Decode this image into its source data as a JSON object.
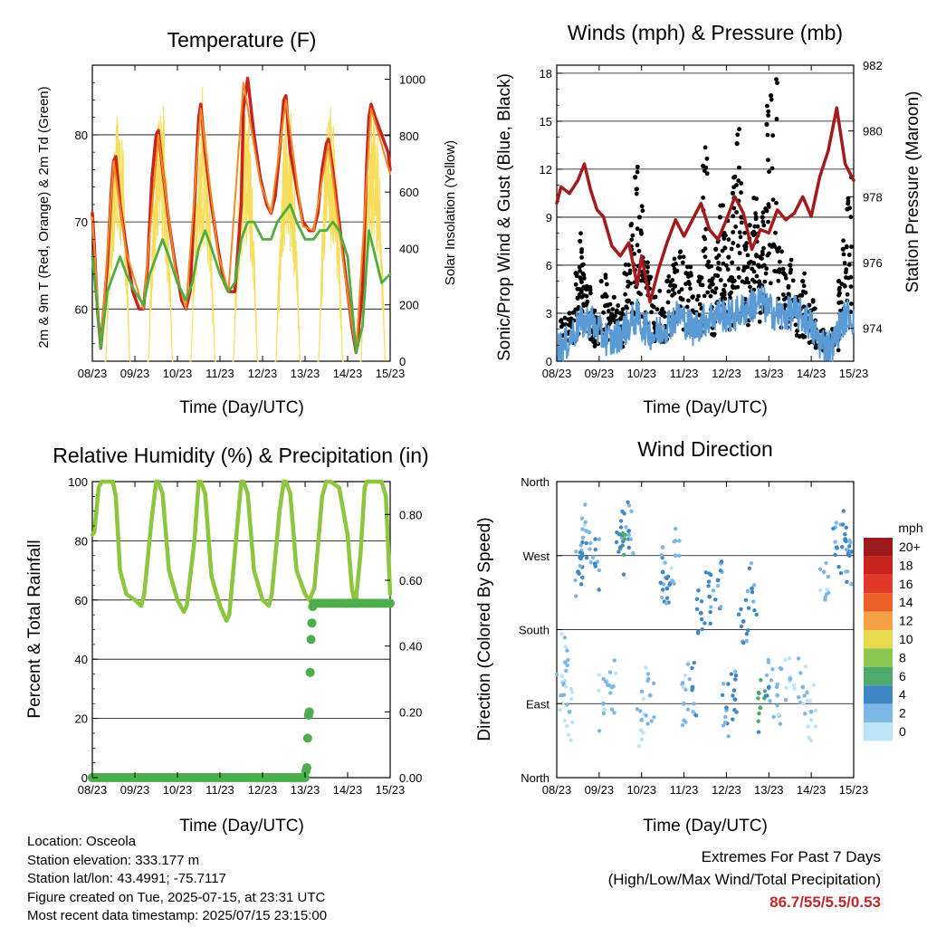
{
  "panels": {
    "temperature": {
      "title": "Temperature (F)",
      "xlabel": "Time (Day/UTC)",
      "ylabel_left": "2m & 9m T (Red, Orange) & 2m Td (Green)",
      "ylabel_right": "Solar Insolation (Yellow)"
    },
    "winds": {
      "title": "Winds (mph) & Pressure (mb)",
      "xlabel": "Time (Day/UTC)",
      "ylabel_left": "Sonic/Prop Wind & Gust (Blue, Black)",
      "ylabel_right": "Station Pressure (Maroon)"
    },
    "humidity": {
      "title": "Relative Humidity (%) & Precipitation (in)",
      "xlabel": "Time (Day/UTC)",
      "ylabel_left": "Percent & Total Rainfall"
    },
    "direction": {
      "title": "Wind Direction",
      "xlabel": "Time (Day/UTC)",
      "ylabel_left": "Direction (Colored By Speed)",
      "legend_title": "mph"
    }
  },
  "info": {
    "location": "Location: Osceola",
    "elevation": "Station elevation: 333.177 m",
    "latlon": "Station lat/lon: 43.4991; -75.7117",
    "created": "Figure created on Tue, 2025-07-15, at 23:31 UTC",
    "timestamp": "Most recent data timestamp: 2025/07/15 23:15:00"
  },
  "extremes": {
    "line1": "Extremes For Past 7 Days",
    "line2": "(High/Low/Max Wind/Total Precipitation)",
    "values": "86.7/55/5.5/0.53"
  },
  "chart_data": [
    {
      "type": "line",
      "title": "Temperature (F)",
      "xlabel": "Time (Day/UTC)",
      "ylabel": "2m & 9m T (Red, Orange) & 2m Td (Green)",
      "y2label": "Solar Insolation (Yellow)",
      "x_ticks": [
        "08/23",
        "09/23",
        "10/23",
        "11/23",
        "12/23",
        "13/23",
        "14/23",
        "15/23"
      ],
      "xlim": [
        0,
        7
      ],
      "ylim": [
        54,
        88
      ],
      "yticks": [
        60,
        70,
        80
      ],
      "y2lim": [
        0,
        1050
      ],
      "y2ticks": [
        0,
        200,
        400,
        600,
        800,
        1000
      ],
      "series": [
        {
          "color": "#c8241d",
          "x": [
            0,
            0.05,
            0.12,
            0.2,
            0.35,
            0.45,
            0.5,
            0.55,
            0.65,
            0.8,
            0.95,
            1.1,
            1.2,
            1.3,
            1.4,
            1.5,
            1.55,
            1.65,
            1.8,
            1.95,
            2.1,
            2.2,
            2.3,
            2.4,
            2.5,
            2.55,
            2.65,
            2.8,
            2.95,
            3.1,
            3.2,
            3.35,
            3.5,
            3.55,
            3.65,
            3.8,
            3.95,
            4.1,
            4.2,
            4.3,
            4.4,
            4.5,
            4.55,
            4.65,
            4.8,
            4.95,
            5.1,
            5.2,
            5.3,
            5.4,
            5.5,
            5.55,
            5.65,
            5.8,
            5.95,
            6.1,
            6.2,
            6.35,
            6.45,
            6.5,
            6.55,
            6.65,
            6.8,
            6.95,
            7
          ],
          "y": [
            71,
            67,
            60,
            55.5,
            65,
            74,
            77,
            77.5,
            72,
            67,
            62,
            60,
            60,
            65,
            75,
            80,
            80.5,
            76,
            70,
            65,
            61,
            60,
            62,
            72,
            82,
            83.5,
            78,
            72,
            67,
            63,
            62,
            62,
            72,
            83,
            86.5,
            80,
            75,
            72,
            71,
            73,
            78,
            84,
            84.5,
            78,
            74,
            70,
            69,
            69,
            71,
            76,
            79,
            79.5,
            76,
            70,
            64,
            58,
            55,
            62,
            77,
            82,
            83.5,
            82,
            80,
            78,
            76
          ]
        },
        {
          "color": "#f08a24",
          "x": [
            0,
            0.2,
            0.5,
            0.8,
            1.2,
            1.55,
            1.95,
            2.2,
            2.55,
            2.95,
            3.2,
            3.55,
            3.95,
            4.2,
            4.55,
            4.95,
            5.2,
            5.55,
            5.95,
            6.2,
            6.55,
            7
          ],
          "y": [
            70.5,
            55.5,
            77,
            66.5,
            60,
            80,
            64.5,
            60,
            83,
            66.5,
            62,
            86,
            74.5,
            71,
            84,
            69.5,
            69,
            79,
            63.5,
            55,
            83,
            75.5
          ]
        },
        {
          "color": "#4fae3b",
          "x": [
            0,
            0.12,
            0.2,
            0.35,
            0.5,
            0.65,
            0.8,
            1.0,
            1.2,
            1.35,
            1.5,
            1.65,
            1.8,
            2.0,
            2.2,
            2.35,
            2.5,
            2.65,
            2.8,
            3.0,
            3.2,
            3.35,
            3.5,
            3.65,
            3.8,
            4.0,
            4.2,
            4.35,
            4.5,
            4.65,
            4.8,
            5.0,
            5.2,
            5.35,
            5.5,
            5.65,
            5.8,
            6.0,
            6.2,
            6.35,
            6.5,
            6.65,
            6.8,
            7
          ],
          "y": [
            66,
            60,
            55.5,
            62,
            64,
            66,
            64,
            62,
            60.5,
            64,
            66,
            68,
            66,
            63,
            61,
            63,
            67,
            69,
            67,
            64,
            62,
            63,
            68,
            70,
            70,
            68,
            68,
            70,
            71,
            72,
            70,
            68,
            68,
            69,
            69,
            70,
            69,
            66,
            55,
            58,
            69,
            66,
            63,
            64
          ]
        }
      ]
    },
    {
      "type": "scatter",
      "title": "Winds (mph) & Pressure (mb)",
      "xlabel": "Time (Day/UTC)",
      "ylabel": "Sonic/Prop Wind & Gust (Blue, Black)",
      "y2label": "Station Pressure (Maroon)",
      "x_ticks": [
        "08/23",
        "09/23",
        "10/23",
        "11/23",
        "12/23",
        "13/23",
        "14/23",
        "15/23"
      ],
      "xlim": [
        0,
        7
      ],
      "ylim": [
        0,
        18.5
      ],
      "yticks": [
        0,
        3,
        6,
        9,
        12,
        15,
        18
      ],
      "y2lim": [
        973,
        982
      ],
      "y2ticks": [
        974,
        976,
        978,
        980,
        982
      ],
      "series": [
        {
          "name": "Station Pressure",
          "color": "#a31a1a",
          "type": "line",
          "x": [
            0,
            0.1,
            0.3,
            0.5,
            0.65,
            0.8,
            0.95,
            1.1,
            1.3,
            1.5,
            1.7,
            1.9,
            2.0,
            2.2,
            2.4,
            2.6,
            2.8,
            3.0,
            3.2,
            3.4,
            3.6,
            3.8,
            4.0,
            4.2,
            4.4,
            4.6,
            4.8,
            5.0,
            5.2,
            5.4,
            5.6,
            5.8,
            6.0,
            6.2,
            6.4,
            6.6,
            6.8,
            7
          ],
          "y": [
            977.8,
            978.3,
            978.1,
            978.5,
            979.0,
            978.2,
            977.6,
            977.4,
            976.5,
            976.2,
            976.6,
            975.3,
            976.2,
            974.8,
            975.8,
            976.6,
            977.3,
            976.8,
            977.3,
            977.8,
            977.0,
            976.7,
            977.3,
            978.0,
            977.5,
            976.4,
            977.0,
            976.9,
            977.6,
            977.3,
            977.5,
            978.0,
            977.4,
            978.6,
            979.4,
            980.7,
            979.0,
            978.5
          ]
        },
        {
          "name": "Wind",
          "color": "#5b9bd5",
          "type": "line",
          "x": [
            0,
            0.2,
            0.5,
            0.8,
            1.0,
            1.3,
            1.6,
            1.9,
            2.0,
            2.3,
            2.6,
            2.9,
            3.2,
            3.5,
            3.8,
            4.1,
            4.4,
            4.6,
            4.8,
            5.0,
            5.3,
            5.6,
            5.9,
            6.2,
            6.5,
            6.7,
            6.9,
            7
          ],
          "y": [
            0.8,
            1.0,
            2.2,
            2.6,
            1.8,
            1.2,
            2.0,
            2.8,
            2.3,
            1.6,
            2.3,
            2.9,
            2.0,
            2.6,
            3.0,
            2.8,
            3.2,
            3.5,
            3.8,
            3.2,
            2.8,
            3.1,
            2.6,
            1.2,
            0.9,
            2.4,
            3.0,
            2.5
          ]
        },
        {
          "name": "Gust",
          "color": "#000000",
          "type": "scatter",
          "x": [
            0.1,
            0.3,
            0.45,
            0.55,
            0.6,
            0.7,
            0.8,
            0.9,
            1.05,
            1.2,
            1.35,
            1.5,
            1.6,
            1.75,
            1.85,
            1.95,
            2.05,
            2.15,
            2.3,
            2.45,
            2.6,
            2.75,
            2.9,
            3.05,
            3.2,
            3.35,
            3.45,
            3.55,
            3.65,
            3.75,
            3.85,
            3.95,
            4.05,
            4.15,
            4.25,
            4.35,
            4.45,
            4.55,
            4.65,
            4.75,
            4.85,
            4.95,
            5.05,
            5.2,
            5.35,
            5.5,
            5.65,
            5.8,
            5.95,
            6.1,
            6.3,
            6.5,
            6.65,
            6.75,
            6.85,
            6.95
          ],
          "y": [
            2.5,
            3.0,
            5.5,
            7.5,
            6.0,
            4.5,
            3.0,
            2.5,
            5.0,
            3.5,
            4.0,
            3.0,
            5.5,
            8.5,
            11.5,
            9.0,
            6.0,
            5.0,
            4.0,
            3.0,
            5.0,
            6.0,
            6.5,
            5.5,
            4.0,
            5.0,
            12.2,
            6.0,
            5.0,
            7.0,
            9.0,
            8.0,
            6.5,
            10.5,
            13.6,
            9.0,
            7.0,
            8.5,
            10.2,
            6.0,
            9.0,
            14.8,
            16.6,
            7.0,
            5.5,
            6.0,
            4.0,
            5.0,
            3.5,
            2.0,
            1.5,
            2.0,
            5.0,
            7.0,
            9.5,
            11.5
          ]
        }
      ]
    },
    {
      "type": "line",
      "title": "Relative Humidity (%) & Precipitation (in)",
      "xlabel": "Time (Day/UTC)",
      "ylabel": "Percent & Total Rainfall",
      "x_ticks": [
        "08/23",
        "09/23",
        "10/23",
        "11/23",
        "12/23",
        "13/23",
        "14/23",
        "15/23"
      ],
      "xlim": [
        0,
        7
      ],
      "ylim": [
        0,
        100
      ],
      "yticks": [
        0,
        20,
        40,
        60,
        80,
        100
      ],
      "y2lim": [
        0,
        0.9
      ],
      "y2ticks": [
        0.0,
        0.2,
        0.4,
        0.6,
        0.8
      ],
      "series": [
        {
          "name": "Relative Humidity",
          "color": "#8cc63f",
          "x": [
            0,
            0.05,
            0.15,
            0.22,
            0.4,
            0.48,
            0.55,
            0.65,
            0.8,
            1.0,
            1.15,
            1.22,
            1.4,
            1.5,
            1.55,
            1.65,
            1.8,
            2.0,
            2.15,
            2.22,
            2.4,
            2.5,
            2.55,
            2.65,
            2.8,
            3.0,
            3.15,
            3.22,
            3.4,
            3.5,
            3.55,
            3.65,
            3.8,
            4.0,
            4.15,
            4.22,
            4.4,
            4.5,
            4.55,
            4.65,
            4.8,
            5.0,
            5.1,
            5.22,
            5.4,
            5.5,
            5.6,
            5.7,
            5.8,
            6.0,
            6.1,
            6.18,
            6.3,
            6.4,
            6.45,
            6.55,
            6.65,
            6.8,
            6.9,
            7
          ],
          "y": [
            82,
            83,
            98,
            100,
            100,
            100,
            95,
            70,
            62,
            60,
            58,
            62,
            88,
            100,
            100,
            96,
            70,
            60,
            56,
            58,
            80,
            100,
            100,
            96,
            68,
            58,
            53,
            55,
            84,
            100,
            100,
            96,
            70,
            60,
            58,
            62,
            90,
            100,
            100,
            96,
            70,
            62,
            60,
            64,
            95,
            100,
            100,
            99,
            98,
            82,
            64,
            58,
            75,
            98,
            100,
            100,
            100,
            100,
            95,
            62
          ]
        },
        {
          "name": "Total Rainfall",
          "color": "#4cae4c",
          "x": [
            0,
            5.0,
            5.02,
            5.04,
            5.06,
            5.08,
            5.1,
            5.12,
            5.14,
            5.16,
            5.18,
            5.2,
            7
          ],
          "y": [
            0,
            0,
            0.02,
            0.03,
            0.12,
            0.19,
            0.2,
            0.32,
            0.42,
            0.47,
            0.52,
            0.53,
            0.53
          ]
        }
      ]
    },
    {
      "type": "scatter",
      "title": "Wind Direction",
      "xlabel": "Time (Day/UTC)",
      "ylabel": "Direction (Colored By Speed)",
      "x_ticks": [
        "08/23",
        "09/23",
        "10/23",
        "11/23",
        "12/23",
        "13/23",
        "14/23",
        "15/23"
      ],
      "y_ticks": [
        "North",
        "East",
        "South",
        "West",
        "North"
      ],
      "ylim": [
        0,
        360
      ],
      "legend": {
        "title": "mph",
        "labels": [
          "20+",
          "18",
          "16",
          "14",
          "12",
          "10",
          "8",
          "6",
          "4",
          "2",
          "0"
        ],
        "colors": [
          "#9c1a1c",
          "#c8241d",
          "#e23a2a",
          "#ec6028",
          "#f6a145",
          "#e6d94e",
          "#8bc650",
          "#4daa6a",
          "#3f86c4",
          "#7cb8e6",
          "#bde3f7"
        ]
      },
      "note": "Dense scatter of direction by time, colored by speed; points listed as [day, direction_deg, speed_mph]",
      "points": [
        [
          0.1,
          100,
          1
        ],
        [
          0.2,
          140,
          2
        ],
        [
          0.3,
          80,
          1
        ],
        [
          0.5,
          250,
          3
        ],
        [
          0.6,
          270,
          4
        ],
        [
          0.7,
          300,
          2
        ],
        [
          0.9,
          260,
          3
        ],
        [
          1.1,
          90,
          1
        ],
        [
          1.3,
          110,
          2
        ],
        [
          1.5,
          280,
          4
        ],
        [
          1.6,
          290,
          5
        ],
        [
          1.7,
          300,
          3
        ],
        [
          2.0,
          70,
          1
        ],
        [
          2.2,
          100,
          2
        ],
        [
          2.5,
          250,
          3
        ],
        [
          2.6,
          230,
          4
        ],
        [
          2.8,
          270,
          2
        ],
        [
          3.0,
          90,
          2
        ],
        [
          3.2,
          110,
          3
        ],
        [
          3.4,
          200,
          4
        ],
        [
          3.6,
          220,
          4
        ],
        [
          3.8,
          240,
          3
        ],
        [
          4.0,
          85,
          3
        ],
        [
          4.2,
          95,
          4
        ],
        [
          4.4,
          190,
          4
        ],
        [
          4.6,
          230,
          3
        ],
        [
          4.8,
          85,
          6
        ],
        [
          5.0,
          110,
          3
        ],
        [
          5.2,
          100,
          2
        ],
        [
          5.5,
          120,
          1
        ],
        [
          5.8,
          110,
          2
        ],
        [
          6.0,
          80,
          1
        ],
        [
          6.3,
          250,
          2
        ],
        [
          6.6,
          280,
          3
        ],
        [
          6.8,
          290,
          4
        ],
        [
          6.9,
          270,
          3
        ]
      ]
    }
  ]
}
